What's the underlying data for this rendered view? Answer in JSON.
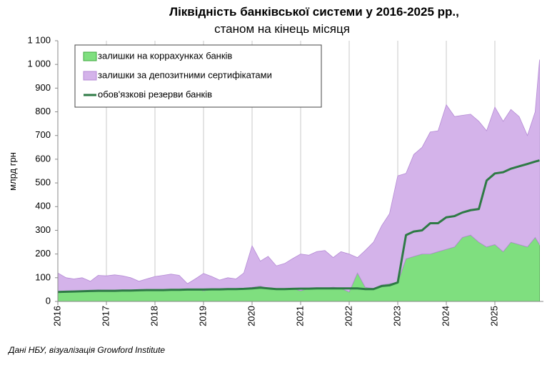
{
  "chart_data": {
    "type": "stacked-area",
    "title": "Ліквідність банківської системи у 2016-2025 рр.,",
    "subtitle": "станом на кінець місяця",
    "y_label": "млрд грн",
    "source": "Дані НБУ, візуалізація Growford Institute",
    "x": [
      2016.0,
      2016.17,
      2016.33,
      2016.5,
      2016.67,
      2016.83,
      2017.0,
      2017.17,
      2017.33,
      2017.5,
      2017.67,
      2017.83,
      2018.0,
      2018.17,
      2018.33,
      2018.5,
      2018.67,
      2018.83,
      2019.0,
      2019.17,
      2019.33,
      2019.5,
      2019.67,
      2019.83,
      2020.0,
      2020.17,
      2020.33,
      2020.5,
      2020.67,
      2020.83,
      2021.0,
      2021.17,
      2021.33,
      2021.5,
      2021.67,
      2021.83,
      2022.0,
      2022.17,
      2022.33,
      2022.5,
      2022.67,
      2022.83,
      2023.0,
      2023.17,
      2023.33,
      2023.5,
      2023.67,
      2023.83,
      2024.0,
      2024.17,
      2024.33,
      2024.5,
      2024.67,
      2024.83,
      2025.0,
      2025.17,
      2025.33,
      2025.5,
      2025.67,
      2025.83,
      2025.92
    ],
    "series": [
      {
        "name": "залишки на коррахунках банків",
        "kind": "area",
        "color": "#7fdf7f",
        "edge": "#3fa83f",
        "values": [
          40,
          38,
          40,
          42,
          45,
          48,
          45,
          45,
          45,
          48,
          48,
          50,
          45,
          50,
          48,
          50,
          48,
          52,
          45,
          50,
          48,
          50,
          52,
          55,
          60,
          65,
          55,
          50,
          55,
          55,
          45,
          55,
          58,
          55,
          60,
          55,
          40,
          120,
          60,
          55,
          70,
          75,
          80,
          180,
          190,
          200,
          200,
          210,
          220,
          230,
          270,
          280,
          250,
          230,
          240,
          210,
          250,
          240,
          230,
          270,
          240
        ]
      },
      {
        "name": "залишки за депозитними сертифікатами",
        "kind": "area",
        "color": "#d4b3ea",
        "edge": "#b48ad4",
        "values": [
          80,
          62,
          55,
          58,
          40,
          62,
          63,
          67,
          63,
          52,
          37,
          45,
          60,
          60,
          67,
          60,
          27,
          43,
          73,
          55,
          42,
          50,
          43,
          65,
          175,
          105,
          135,
          100,
          105,
          125,
          155,
          140,
          152,
          160,
          125,
          155,
          160,
          65,
          155,
          195,
          250,
          295,
          450,
          360,
          430,
          450,
          515,
          510,
          610,
          550,
          515,
          510,
          510,
          490,
          580,
          550,
          560,
          540,
          470,
          530,
          780
        ]
      },
      {
        "name": "обов'язкові резерви банків",
        "kind": "line",
        "color": "#2e7a45",
        "values": [
          40,
          41,
          42,
          43,
          44,
          45,
          45,
          45,
          46,
          46,
          47,
          48,
          48,
          48,
          49,
          49,
          50,
          50,
          50,
          51,
          51,
          52,
          52,
          53,
          55,
          58,
          55,
          52,
          52,
          53,
          54,
          54,
          55,
          55,
          55,
          55,
          55,
          55,
          52,
          52,
          65,
          68,
          80,
          280,
          295,
          300,
          330,
          330,
          355,
          360,
          375,
          385,
          390,
          510,
          540,
          545,
          560,
          570,
          580,
          590,
          595
        ]
      }
    ],
    "xlim": [
      2016,
      2026
    ],
    "xticks": [
      2016,
      2017,
      2018,
      2019,
      2020,
      2021,
      2022,
      2023,
      2024,
      2025
    ],
    "ylim": [
      0,
      1100
    ],
    "yticks": [
      0,
      100,
      200,
      300,
      400,
      500,
      600,
      700,
      800,
      900,
      {
        "value": 1000,
        "label": "1 000"
      },
      {
        "value": 1100,
        "label": "1 100"
      }
    ],
    "grid": "x",
    "legend": "upper left"
  }
}
